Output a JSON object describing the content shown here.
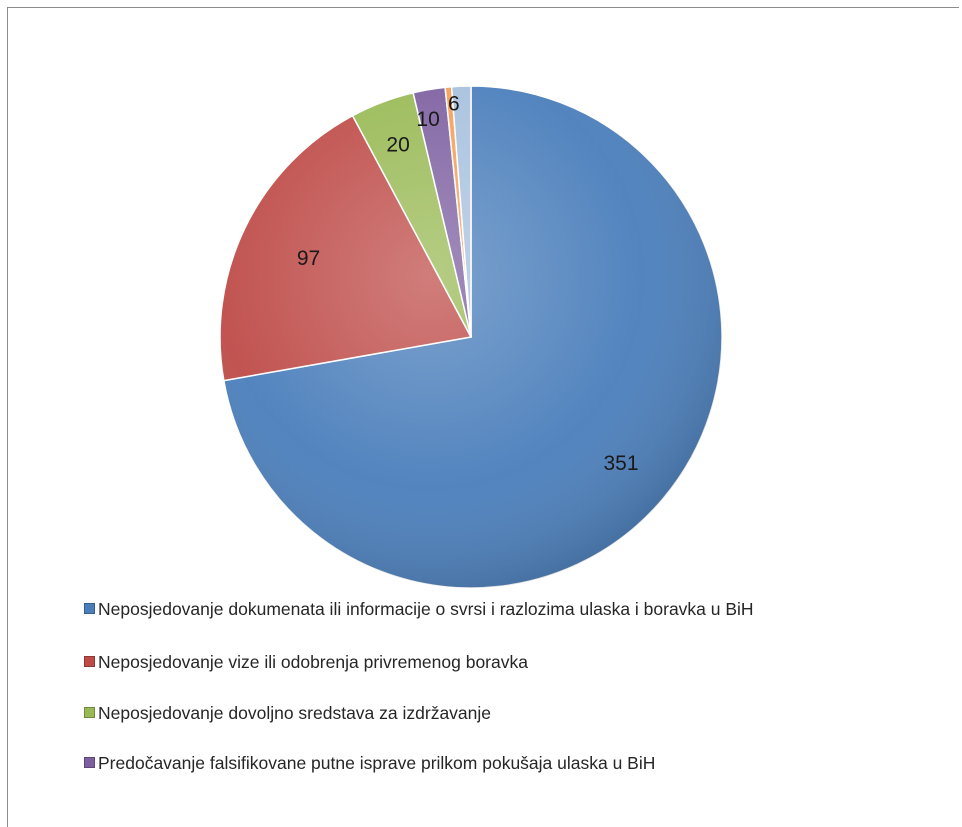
{
  "chart_data": {
    "type": "pie",
    "title": "",
    "slices": [
      {
        "label": "Neposjedovanje dokumenata ili informacije o svrsi i razlozima ulaska i boravka u BiH",
        "value": 351,
        "value_label": "351",
        "color": "#4a7ebb"
      },
      {
        "label": "Neposjedovanje vize ili odobrenja privremenog boravka",
        "value": 97,
        "value_label": "97",
        "color": "#be4b48"
      },
      {
        "label": "Neposjedovanje dovoljno sredstava za izdržavanje",
        "value": 20,
        "value_label": "20",
        "color": "#98b954"
      },
      {
        "label": "Predočavanje falsifikovane putne isprave prilkom pokušaja ulaska u BiH",
        "value": 10,
        "value_label": "10",
        "color": "#7d5fa0"
      },
      {
        "label": "",
        "value": 2,
        "value_label": "",
        "color": "#f59d56"
      },
      {
        "label": "",
        "value": 6,
        "value_label": "6",
        "color": "#a7c0de"
      }
    ],
    "legend_position": "bottom",
    "legend_visible_entries": 4
  }
}
